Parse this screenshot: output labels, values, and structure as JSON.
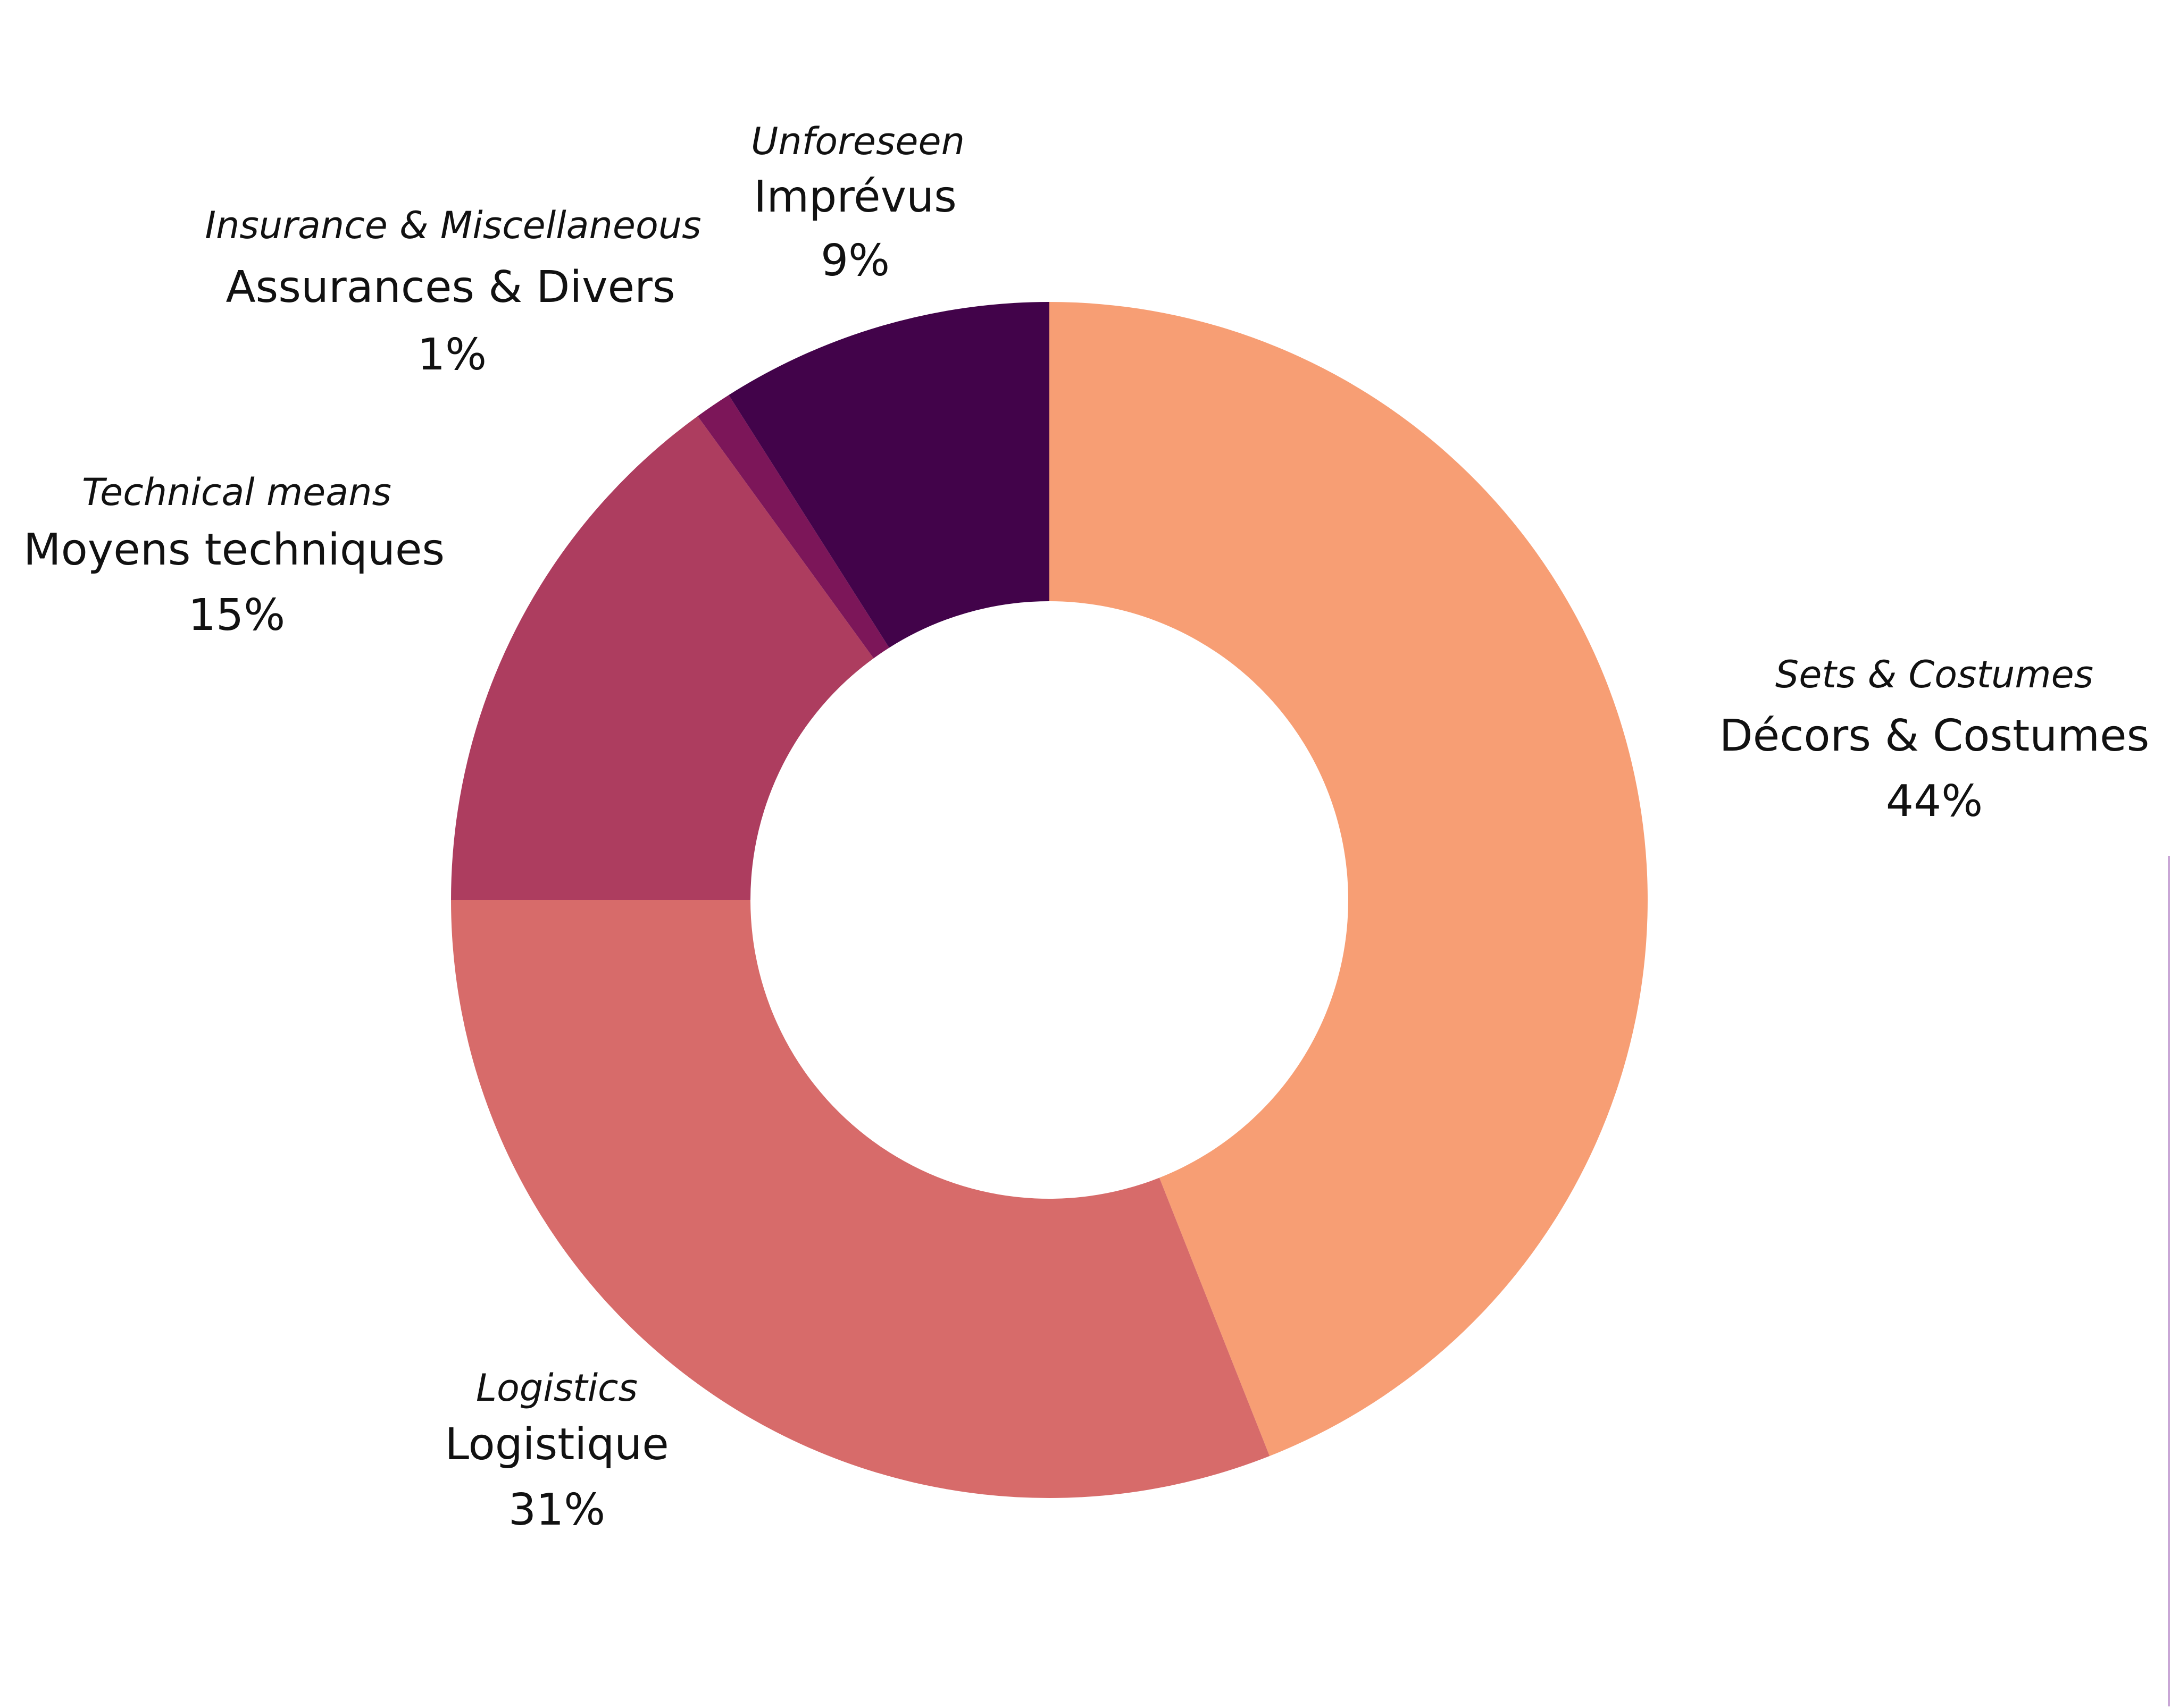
{
  "chart_data": {
    "type": "donut",
    "slices": [
      {
        "label_en": "Sets & Costumes",
        "label_fr": "Décors & Costumes",
        "value": 44,
        "value_label": "44%",
        "color": "#f79e74"
      },
      {
        "label_en": "Logistics",
        "label_fr": "Logistique",
        "value": 31,
        "value_label": "31%",
        "color": "#d76b6a"
      },
      {
        "label_en": "Technical means",
        "label_fr": "Moyens techniques",
        "value": 15,
        "value_label": "15%",
        "color": "#ad3d5f"
      },
      {
        "label_en": "Insurance & Miscellaneous",
        "label_fr": "Assurances & Divers",
        "value": 1,
        "value_label": "1%",
        "color": "#7c1659"
      },
      {
        "label_en": "Unforeseen",
        "label_fr": "Imprévus",
        "value": 9,
        "value_label": "9%",
        "color": "#42034a"
      }
    ],
    "start": "12 o'clock",
    "direction": "clockwise"
  }
}
